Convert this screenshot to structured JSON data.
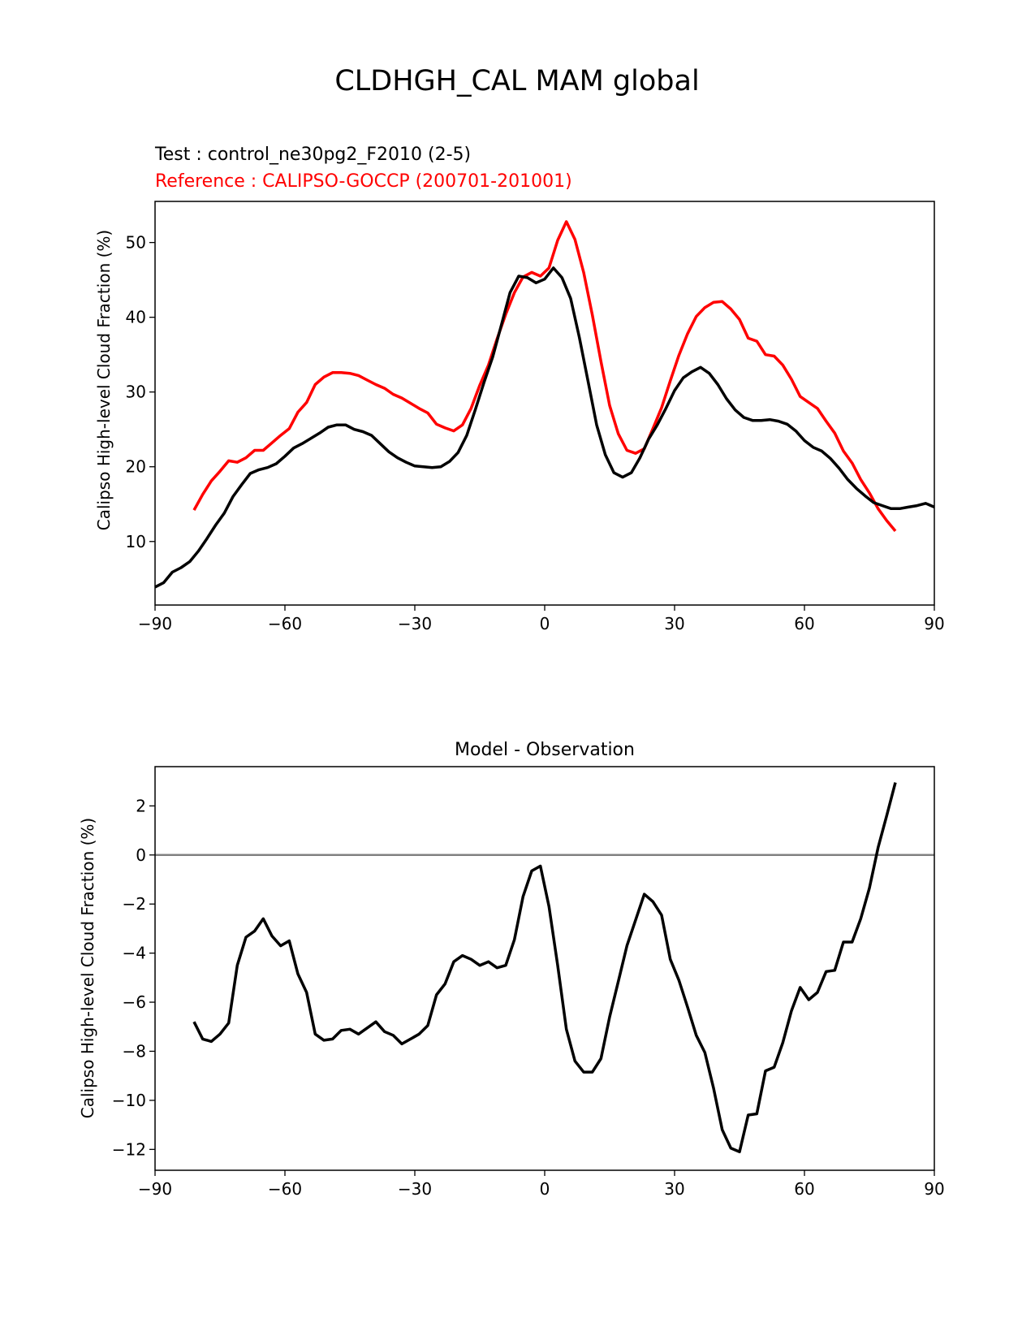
{
  "figure": {
    "title": "CLDHGH_CAL MAM global"
  },
  "chart_data": [
    {
      "type": "line",
      "test_label": "Test : control_ne30pg2_F2010 (2-5)",
      "reference_label": "Reference : CALIPSO-GOCCP (200701-201001)",
      "xlabel": "",
      "ylabel": "Calipso High-level Cloud Fraction (%)",
      "xlim": [
        -90,
        90
      ],
      "ylim": [
        1.5,
        55.5
      ],
      "xticks": [
        -90,
        -60,
        -30,
        0,
        30,
        60,
        90
      ],
      "xtick_labels": [
        "−90",
        "−60",
        "−30",
        "0",
        "30",
        "60",
        "90"
      ],
      "yticks": [
        10,
        20,
        30,
        40,
        50
      ],
      "ytick_labels": [
        "10",
        "20",
        "30",
        "40",
        "50"
      ],
      "grid": false,
      "series": [
        {
          "color": "#ff0000",
          "x": [
            -81,
            -79,
            -77,
            -75,
            -73,
            -71,
            -69,
            -67,
            -65,
            -63,
            -61,
            -59,
            -57,
            -55,
            -53,
            -51,
            -49,
            -47,
            -45,
            -43,
            -41,
            -39,
            -37,
            -35,
            -33,
            -31,
            -29,
            -27,
            -25,
            -23,
            -21,
            -19,
            -17,
            -15,
            -13,
            -11,
            -9,
            -7,
            -5,
            -3,
            -1,
            1,
            3,
            5,
            7,
            9,
            11,
            13,
            15,
            17,
            19,
            21,
            23,
            25,
            27,
            29,
            31,
            33,
            35,
            37,
            39,
            41,
            43,
            45,
            47,
            49,
            51,
            53,
            55,
            57,
            59,
            61,
            63,
            65,
            67,
            69,
            71,
            73,
            75,
            77,
            79,
            81
          ],
          "y": [
            14.2,
            16.3,
            18.1,
            19.4,
            20.8,
            20.6,
            21.2,
            22.2,
            22.2,
            23.2,
            24.2,
            25.1,
            27.3,
            28.6,
            31.0,
            32.0,
            32.6,
            32.6,
            32.5,
            32.2,
            31.6,
            31.0,
            30.5,
            29.7,
            29.2,
            28.5,
            27.8,
            27.2,
            25.7,
            25.2,
            24.8,
            25.6,
            27.8,
            30.9,
            33.6,
            37.1,
            40.4,
            43.3,
            45.4,
            46.0,
            45.5,
            46.6,
            50.3,
            52.8,
            50.4,
            46.0,
            40.3,
            34.1,
            28.2,
            24.4,
            22.2,
            21.8,
            22.4,
            25.1,
            27.9,
            31.5,
            34.9,
            37.8,
            40.1,
            41.3,
            42.0,
            42.1,
            41.1,
            39.7,
            37.2,
            36.8,
            35.0,
            34.8,
            33.6,
            31.7,
            29.4,
            28.6,
            27.8,
            26.1,
            24.5,
            22.1,
            20.5,
            18.3,
            16.5,
            14.4,
            12.8,
            11.4
          ]
        },
        {
          "color": "#000000",
          "x": [
            -90,
            -88,
            -86,
            -84,
            -82,
            -80,
            -78,
            -76,
            -74,
            -72,
            -70,
            -68,
            -66,
            -64,
            -62,
            -60,
            -58,
            -56,
            -54,
            -52,
            -50,
            -48,
            -46,
            -44,
            -42,
            -40,
            -38,
            -36,
            -34,
            -32,
            -30,
            -28,
            -26,
            -24,
            -22,
            -20,
            -18,
            -16,
            -14,
            -12,
            -10,
            -8,
            -6,
            -4,
            -2,
            0,
            2,
            4,
            6,
            8,
            10,
            12,
            14,
            16,
            18,
            20,
            22,
            24,
            26,
            28,
            30,
            32,
            34,
            36,
            38,
            40,
            42,
            44,
            46,
            48,
            50,
            52,
            54,
            56,
            58,
            60,
            62,
            64,
            66,
            68,
            70,
            72,
            74,
            76,
            78,
            80,
            82,
            84,
            86,
            88,
            90
          ],
          "y": [
            3.9,
            4.5,
            5.9,
            6.5,
            7.3,
            8.7,
            10.4,
            12.2,
            13.8,
            16.0,
            17.6,
            19.1,
            19.6,
            19.9,
            20.4,
            21.4,
            22.5,
            23.1,
            23.8,
            24.5,
            25.3,
            25.6,
            25.6,
            25.0,
            24.7,
            24.2,
            23.1,
            22.0,
            21.2,
            20.6,
            20.1,
            20.0,
            19.9,
            20.0,
            20.7,
            21.9,
            24.2,
            27.7,
            31.3,
            34.7,
            39.0,
            43.3,
            45.5,
            45.3,
            44.6,
            45.1,
            46.6,
            45.3,
            42.5,
            37.3,
            31.5,
            25.6,
            21.6,
            19.2,
            18.6,
            19.2,
            21.2,
            23.7,
            25.6,
            27.8,
            30.2,
            31.9,
            32.7,
            33.3,
            32.5,
            31.0,
            29.1,
            27.6,
            26.6,
            26.2,
            26.2,
            26.3,
            26.1,
            25.7,
            24.8,
            23.5,
            22.6,
            22.1,
            21.1,
            19.8,
            18.3,
            17.1,
            16.1,
            15.2,
            14.8,
            14.4,
            14.4,
            14.6,
            14.8,
            15.1,
            14.6
          ]
        }
      ]
    },
    {
      "type": "line",
      "title": "Model - Observation",
      "xlabel": "",
      "ylabel": "Calipso High-level Cloud Fraction (%)",
      "xlim": [
        -90,
        90
      ],
      "ylim": [
        -12.85,
        3.6
      ],
      "xticks": [
        -90,
        -60,
        -30,
        0,
        30,
        60,
        90
      ],
      "xtick_labels": [
        "−90",
        "−60",
        "−30",
        "0",
        "30",
        "60",
        "90"
      ],
      "yticks": [
        -12,
        -10,
        -8,
        -6,
        -4,
        -2,
        0,
        2
      ],
      "ytick_labels": [
        "−12",
        "−10",
        "−8",
        "−6",
        "−4",
        "−2",
        "0",
        "2"
      ],
      "zero_line_color": "#808080",
      "grid": false,
      "series": [
        {
          "color": "#000000",
          "x": [
            -81,
            -79,
            -77,
            -75,
            -73,
            -71,
            -69,
            -67,
            -65,
            -63,
            -61,
            -59,
            -57,
            -55,
            -53,
            -51,
            -49,
            -47,
            -45,
            -43,
            -41,
            -39,
            -37,
            -35,
            -33,
            -31,
            -29,
            -27,
            -25,
            -23,
            -21,
            -19,
            -17,
            -15,
            -13,
            -11,
            -9,
            -7,
            -5,
            -3,
            -1,
            1,
            3,
            5,
            7,
            9,
            11,
            13,
            15,
            17,
            19,
            21,
            23,
            25,
            27,
            29,
            31,
            33,
            35,
            37,
            39,
            41,
            43,
            45,
            47,
            49,
            51,
            53,
            55,
            57,
            59,
            61,
            63,
            65,
            67,
            69,
            71,
            73,
            75,
            77,
            79,
            81
          ],
          "y": [
            -6.8,
            -7.5,
            -7.6,
            -7.3,
            -6.85,
            -4.5,
            -3.35,
            -3.1,
            -2.6,
            -3.3,
            -3.7,
            -3.5,
            -4.85,
            -5.6,
            -7.3,
            -7.55,
            -7.5,
            -7.15,
            -7.1,
            -7.3,
            -7.05,
            -6.8,
            -7.2,
            -7.35,
            -7.7,
            -7.5,
            -7.3,
            -6.95,
            -5.7,
            -5.25,
            -4.35,
            -4.1,
            -4.25,
            -4.5,
            -4.35,
            -4.6,
            -4.5,
            -3.45,
            -1.7,
            -0.65,
            -0.45,
            -2.1,
            -4.5,
            -7.1,
            -8.4,
            -8.85,
            -8.85,
            -8.3,
            -6.6,
            -5.15,
            -3.7,
            -2.65,
            -1.6,
            -1.9,
            -2.45,
            -4.25,
            -5.1,
            -6.2,
            -7.35,
            -8.05,
            -9.5,
            -11.2,
            -11.95,
            -12.1,
            -10.6,
            -10.55,
            -8.8,
            -8.65,
            -7.65,
            -6.35,
            -5.4,
            -5.9,
            -5.6,
            -4.75,
            -4.7,
            -3.55,
            -3.55,
            -2.6,
            -1.35,
            0.3,
            1.6,
            2.95
          ]
        }
      ]
    }
  ]
}
